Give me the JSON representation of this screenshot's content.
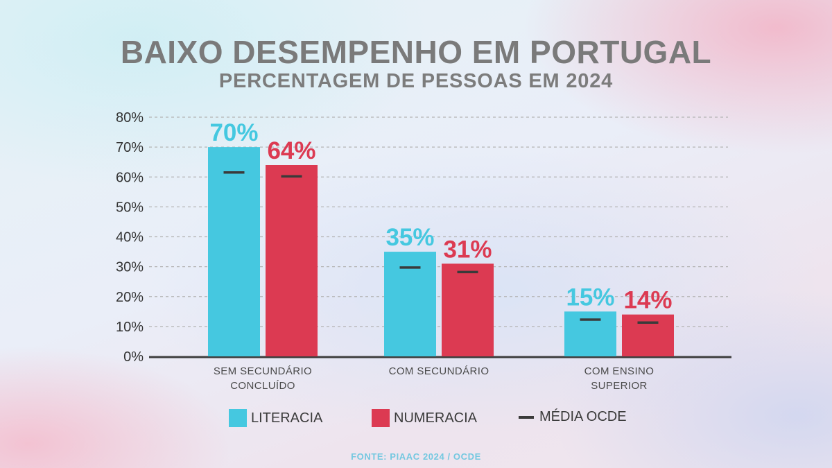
{
  "title": "BAIXO DESEMPENHO EM PORTUGAL",
  "subtitle": "PERCENTAGEM DE PESSOAS EM 2024",
  "source": "FONTE: PIAAC 2024 / OCDE",
  "colors": {
    "literacia": "#45c8e0",
    "numeracia": "#dc3a52",
    "media": "#3a3a3a",
    "axis": "#3d3d3d",
    "grid": "#b4b4b4"
  },
  "legend": {
    "literacia": "LITERACIA",
    "numeracia": "NUMERACIA",
    "media": "MÉDIA OCDE"
  },
  "chart_data": {
    "type": "bar",
    "title": "BAIXO DESEMPENHO EM PORTUGAL",
    "subtitle": "PERCENTAGEM DE PESSOAS EM 2024",
    "categories": [
      [
        "SEM SECUNDÁRIO",
        "CONCLUÍDO"
      ],
      [
        "COM SECUNDÁRIO"
      ],
      [
        "COM ENSINO",
        "SUPERIOR"
      ]
    ],
    "series": [
      {
        "name": "LITERACIA",
        "values": [
          70,
          35,
          15
        ],
        "labels": [
          "70%",
          "35%",
          "15%"
        ]
      },
      {
        "name": "NUMERACIA",
        "values": [
          64,
          31,
          14
        ],
        "labels": [
          "64%",
          "31%",
          "14%"
        ]
      }
    ],
    "reference": {
      "name": "MÉDIA OCDE",
      "values": [
        [
          61.5,
          60.2
        ],
        [
          29.7,
          28.2
        ],
        [
          12.3,
          11.3
        ]
      ]
    },
    "ylim": [
      0,
      80
    ],
    "yticks": [
      0,
      10,
      20,
      30,
      40,
      50,
      60,
      70,
      80
    ],
    "ytick_labels": [
      "0%",
      "10%",
      "20%",
      "30%",
      "40%",
      "50%",
      "60%",
      "70%",
      "80%"
    ],
    "grid": true,
    "legend_position": "bottom"
  }
}
